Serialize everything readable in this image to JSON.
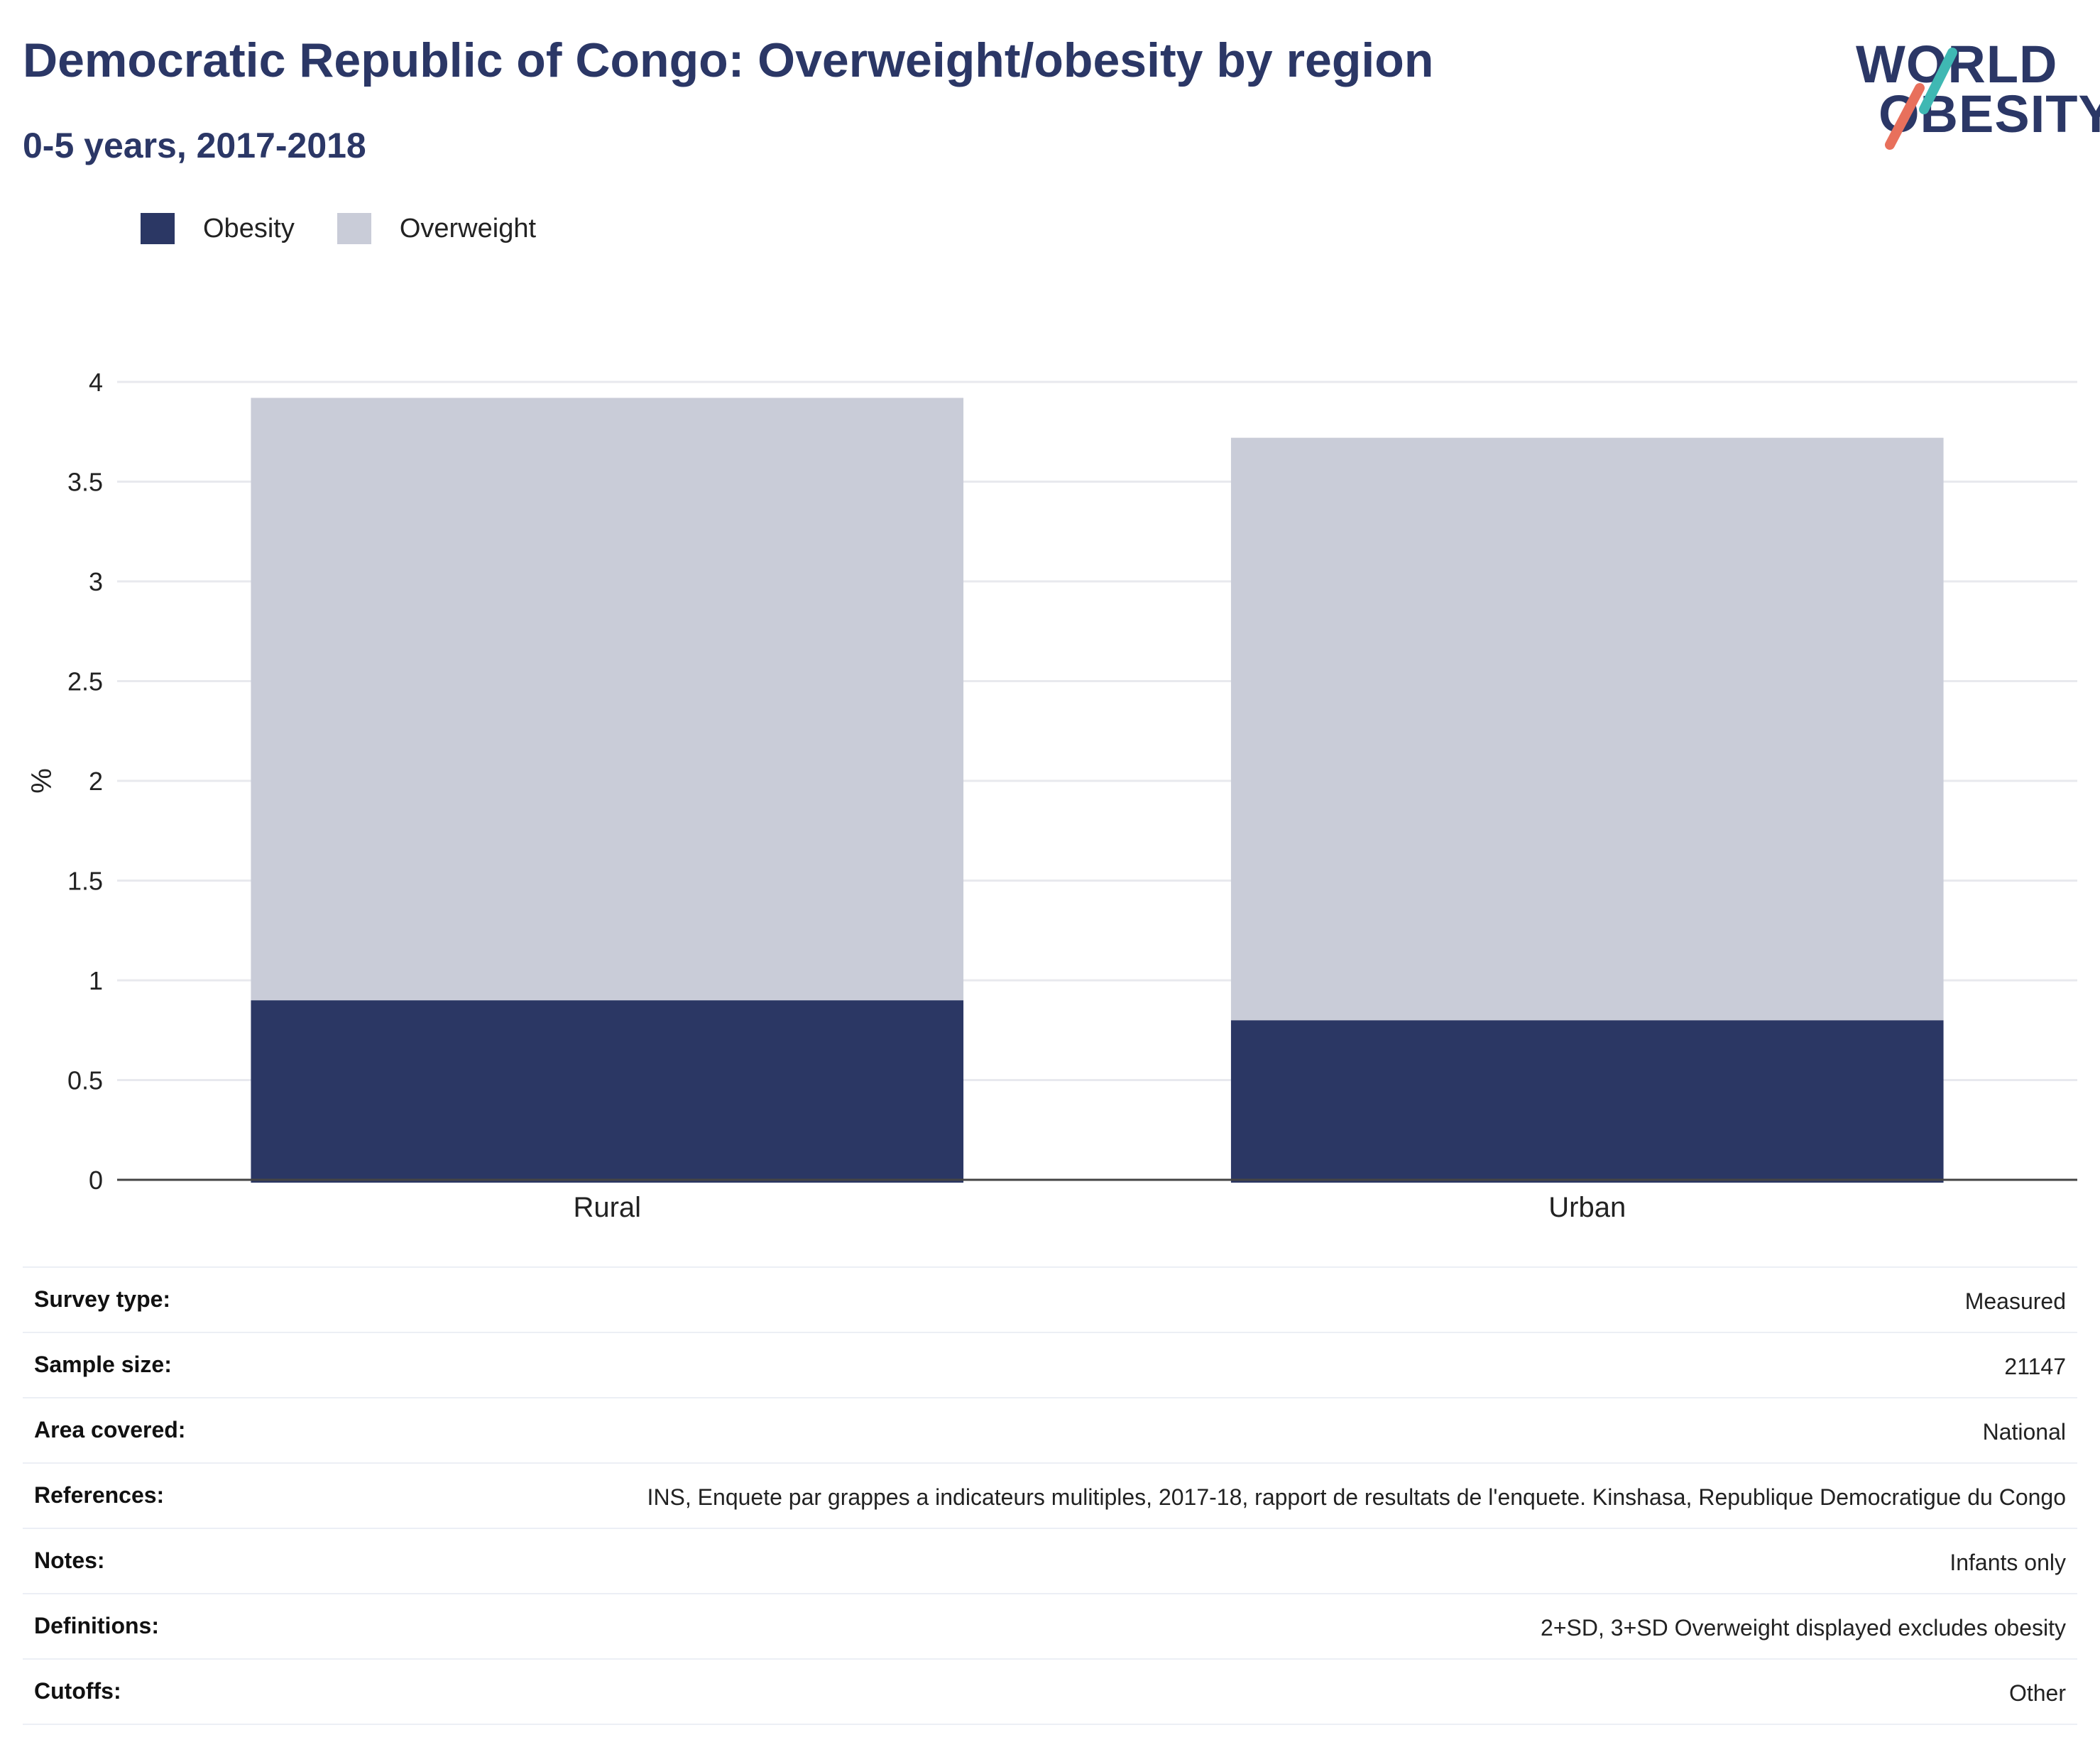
{
  "header": {
    "title": "Democratic Republic of Congo: Overweight/obesity by region",
    "subtitle": "0-5 years, 2017-2018"
  },
  "logo": {
    "line1": "WORLD",
    "line2": "OBESITY",
    "accent_teal": "#3fb8b3",
    "accent_coral": "#e8705c"
  },
  "colors": {
    "obesity": "#2b3764",
    "overweight": "#c9ccd8",
    "grid": "#e8e9ee",
    "axis": "#444444"
  },
  "chart_data": {
    "type": "bar",
    "stacked": true,
    "categories": [
      "Rural",
      "Urban"
    ],
    "series": [
      {
        "name": "Obesity",
        "values": [
          0.9,
          0.8
        ]
      },
      {
        "name": "Overweight",
        "values": [
          3.02,
          2.92
        ]
      }
    ],
    "ylabel": "%",
    "ylim": [
      0,
      4
    ],
    "yticks": [
      "0",
      "0.5",
      "1",
      "1.5",
      "2",
      "2.5",
      "3",
      "3.5",
      "4"
    ],
    "grid": true,
    "legend": "top-left"
  },
  "details": [
    {
      "label": "Survey type:",
      "value": "Measured"
    },
    {
      "label": "Sample size:",
      "value": "21147"
    },
    {
      "label": "Area covered:",
      "value": "National"
    },
    {
      "label": "References:",
      "value": "INS, Enquete par grappes a indicateurs mulitiples, 2017-18, rapport de resultats de l'enquete. Kinshasa, Republique Democratigue du Congo"
    },
    {
      "label": "Notes:",
      "value": "Infants only"
    },
    {
      "label": "Definitions:",
      "value": "2+SD, 3+SD Overweight displayed excludes obesity"
    },
    {
      "label": "Cutoffs:",
      "value": "Other"
    }
  ]
}
